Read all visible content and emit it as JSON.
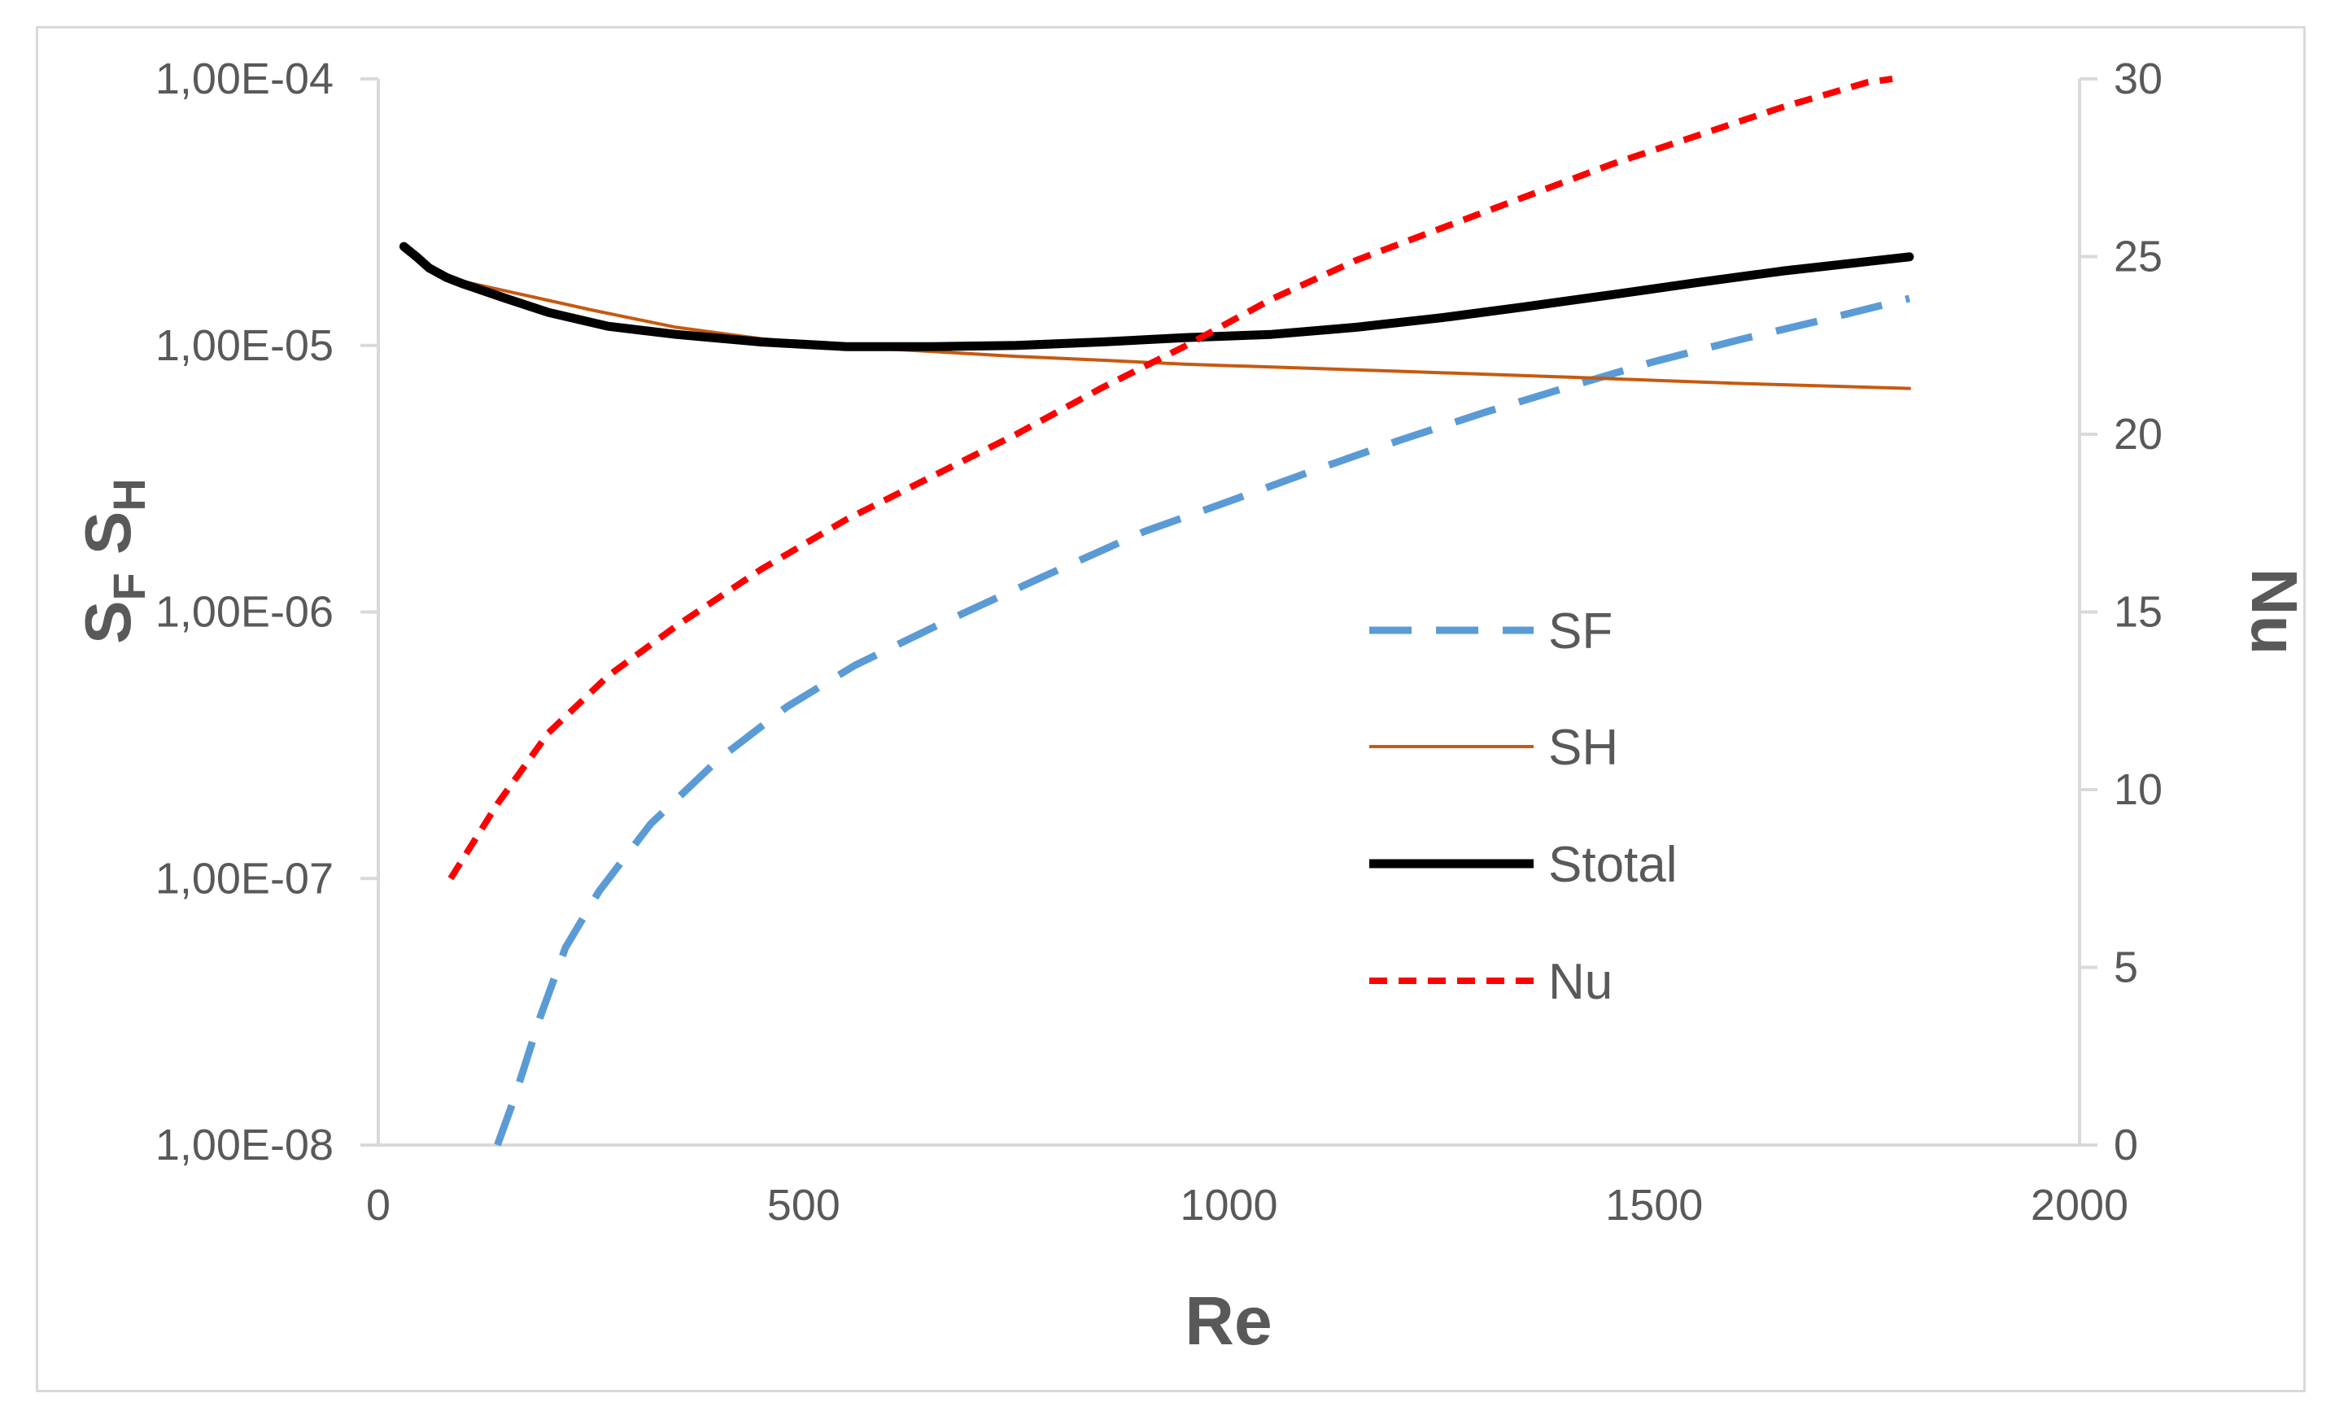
{
  "chart_data": {
    "type": "line",
    "title": "",
    "xlabel": "Re",
    "ylabel": {
      "main1": "S",
      "sub1": "F",
      "main2": "S",
      "sub2": "H"
    },
    "y2label": "Nu",
    "xlim": [
      0,
      2000
    ],
    "ylim": [
      1e-08,
      0.0001
    ],
    "y2lim": [
      0,
      30
    ],
    "yscale": "log",
    "x_ticks": [
      "0",
      "500",
      "1000",
      "1500",
      "2000"
    ],
    "y_ticks": [
      "1,00E-08",
      "1,00E-07",
      "1,00E-06",
      "1,00E-05",
      "1,00E-04"
    ],
    "y2_ticks": [
      "0",
      "5",
      "10",
      "15",
      "20",
      "25",
      "30"
    ],
    "grid": false,
    "legend_position": "center-right",
    "series": [
      {
        "name": "SF",
        "axis": "left",
        "color": "#5b9bd5",
        "style": "long-dash",
        "width": 9,
        "x": [
          140,
          160,
          190,
          220,
          260,
          320,
          400,
          480,
          560,
          660,
          780,
          900,
          1000,
          1100,
          1200,
          1300,
          1400,
          1500,
          1600,
          1700,
          1800
        ],
        "y": [
          1e-08,
          1.5e-08,
          3e-08,
          5.5e-08,
          9e-08,
          1.6e-07,
          2.8e-07,
          4.4e-07,
          6.3e-07,
          9e-07,
          1.35e-06,
          2e-06,
          2.6e-06,
          3.4e-06,
          4.4e-06,
          5.6e-06,
          7e-06,
          8.7e-06,
          1.05e-05,
          1.25e-05,
          1.5e-05
        ]
      },
      {
        "name": "SH",
        "axis": "left",
        "color": "#c55a11",
        "style": "solid",
        "width": 4,
        "x": [
          85,
          150,
          250,
          350,
          450,
          550,
          650,
          750,
          850,
          950,
          1050,
          1200,
          1400,
          1600,
          1800
        ],
        "y": [
          1.78e-05,
          1.6e-05,
          1.36e-05,
          1.17e-05,
          1.06e-05,
          9.9e-06,
          9.5e-06,
          9.1e-06,
          8.8e-06,
          8.5e-06,
          8.3e-06,
          8e-06,
          7.6e-06,
          7.2e-06,
          6.9e-06
        ]
      },
      {
        "name": "Stotal",
        "axis": "left",
        "color": "#000000",
        "style": "solid",
        "width": 11,
        "x": [
          30,
          45,
          60,
          80,
          100,
          150,
          200,
          270,
          350,
          450,
          550,
          650,
          750,
          850,
          950,
          1050,
          1150,
          1250,
          1350,
          1450,
          1550,
          1650,
          1800
        ],
        "y": [
          2.35e-05,
          2.15e-05,
          1.95e-05,
          1.8e-05,
          1.7e-05,
          1.5e-05,
          1.33e-05,
          1.18e-05,
          1.1e-05,
          1.03e-05,
          9.9e-06,
          9.9e-06,
          1e-05,
          1.03e-05,
          1.07e-05,
          1.1e-05,
          1.17e-05,
          1.27e-05,
          1.4e-05,
          1.55e-05,
          1.72e-05,
          1.9e-05,
          2.15e-05
        ]
      },
      {
        "name": "Nu",
        "axis": "right",
        "color": "#ff0000",
        "style": "short-dash",
        "width": 8,
        "x": [
          85,
          140,
          200,
          270,
          350,
          450,
          550,
          650,
          750,
          850,
          950,
          1050,
          1150,
          1250,
          1350,
          1450,
          1550,
          1650,
          1750,
          1780
        ],
        "y": [
          7.5,
          9.6,
          11.6,
          13.2,
          14.6,
          16.2,
          17.6,
          18.8,
          20,
          21.3,
          22.5,
          23.8,
          24.9,
          25.8,
          26.7,
          27.6,
          28.4,
          29.2,
          29.9,
          30
        ]
      }
    ]
  }
}
